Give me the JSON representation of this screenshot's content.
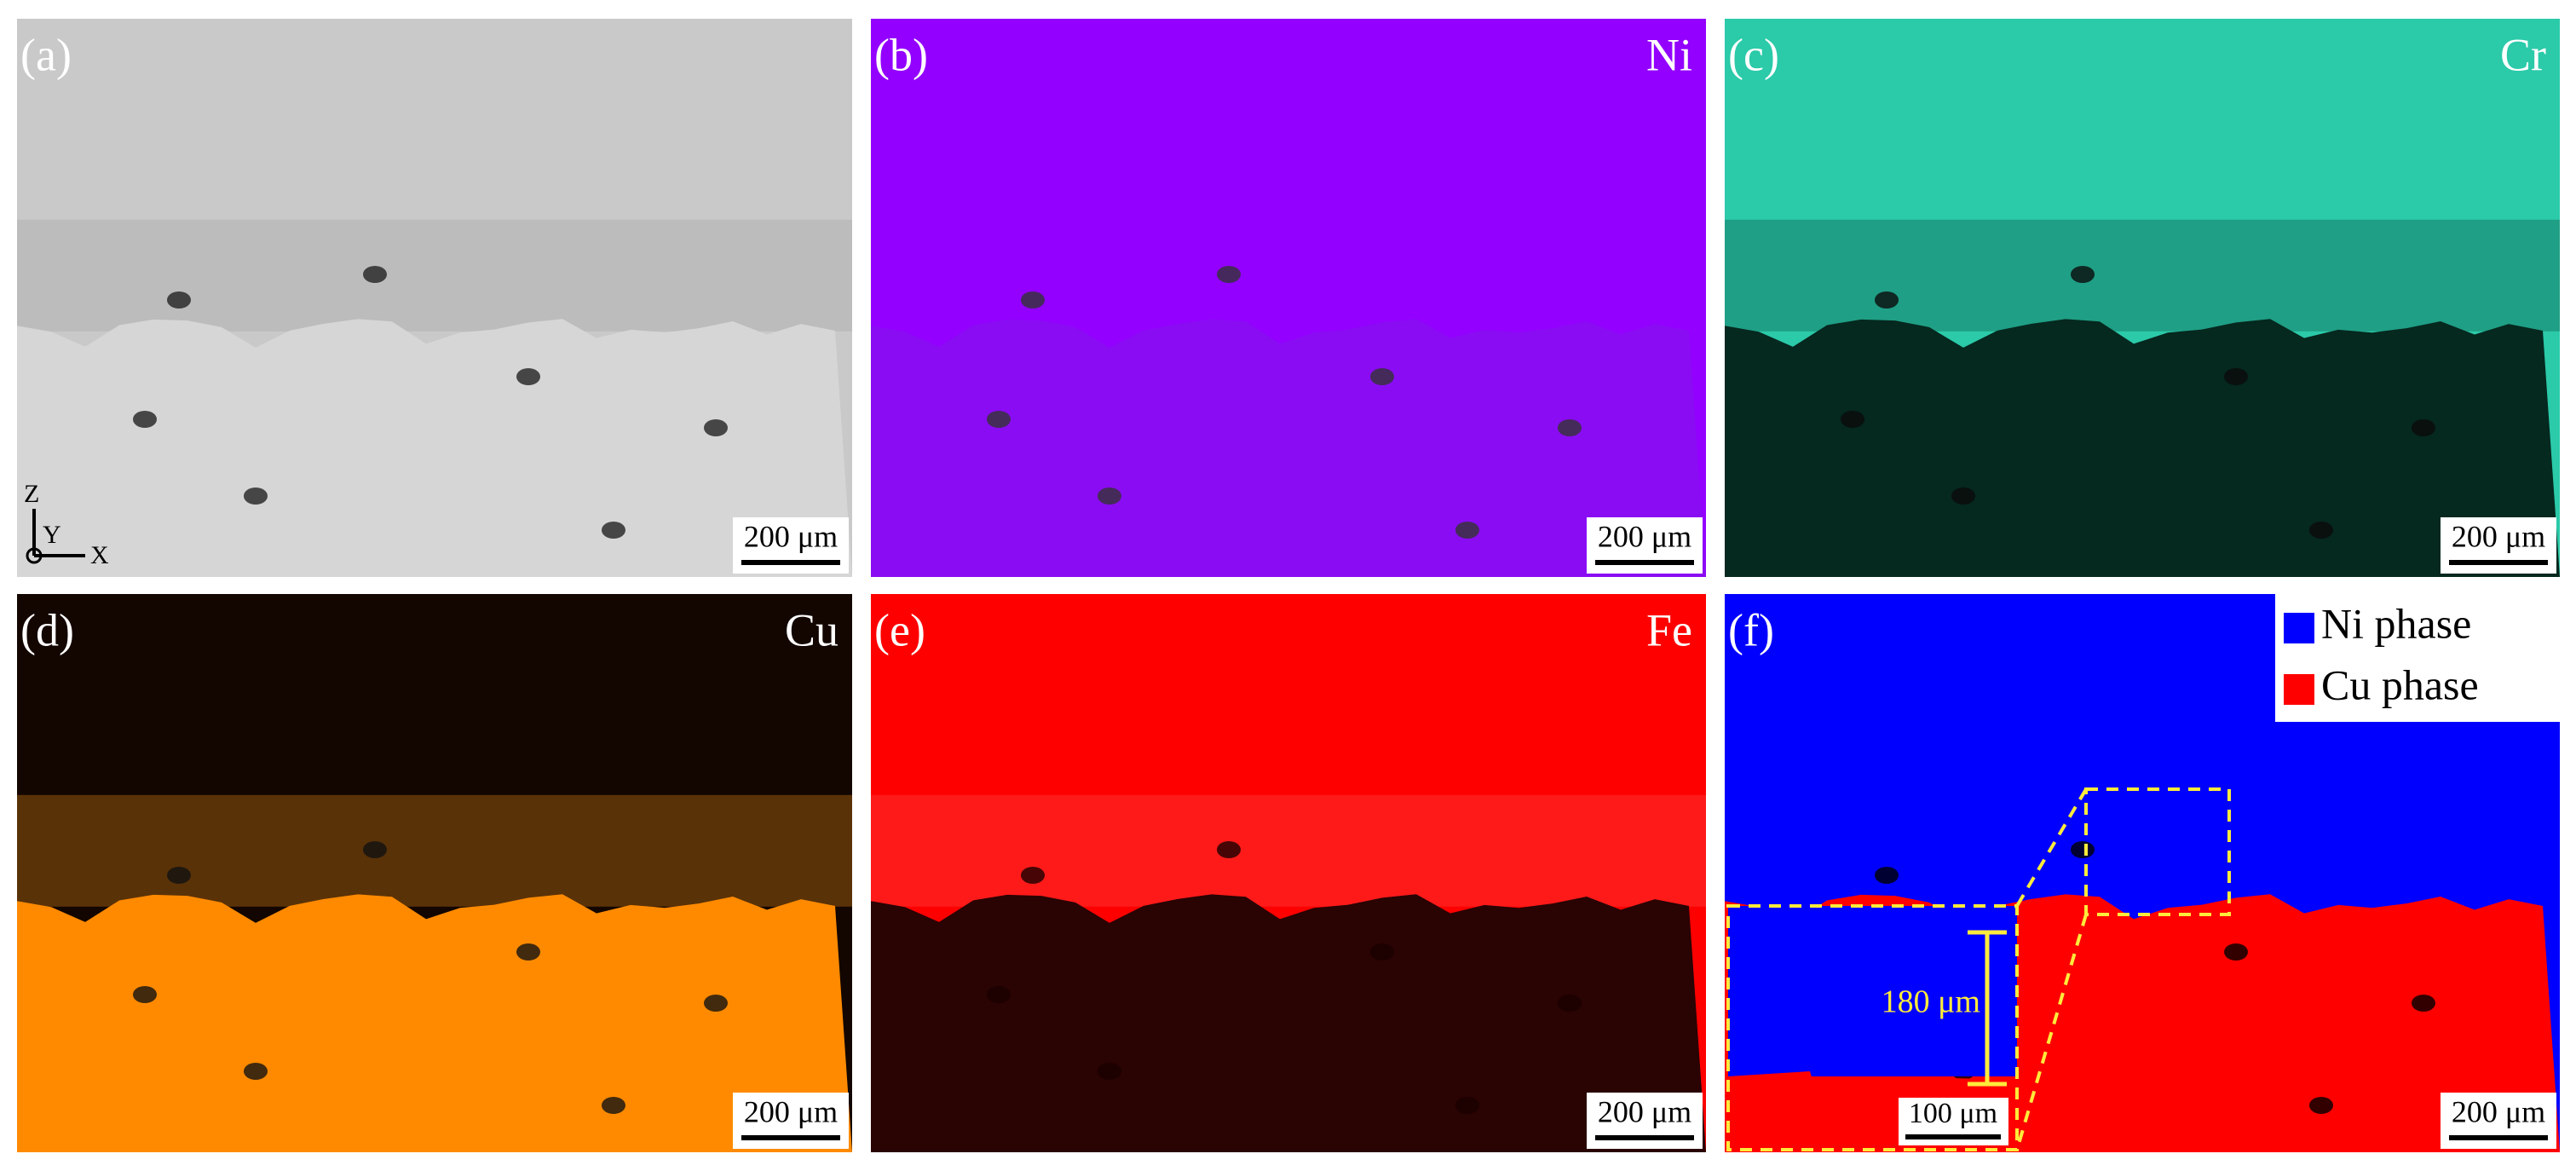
{
  "panels": [
    {
      "label": "(a)",
      "scale_bar": "200 μm",
      "axes": {
        "z": "Z",
        "y": "Y",
        "x": "X"
      }
    },
    {
      "label": "(b)",
      "element": "Ni",
      "scale_bar": "200 μm"
    },
    {
      "label": "(c)",
      "element": "Cr",
      "scale_bar": "200 μm"
    },
    {
      "label": "(d)",
      "element": "Cu",
      "scale_bar": "200 μm"
    },
    {
      "label": "(e)",
      "element": "Fe",
      "scale_bar": "200 μm"
    },
    {
      "label": "(f)",
      "scale_bar": "200 μm",
      "legend": [
        "Ni phase",
        "Cu phase"
      ],
      "inset": {
        "thickness": "180 μm",
        "scale_bar": "100 μm"
      }
    }
  ]
}
